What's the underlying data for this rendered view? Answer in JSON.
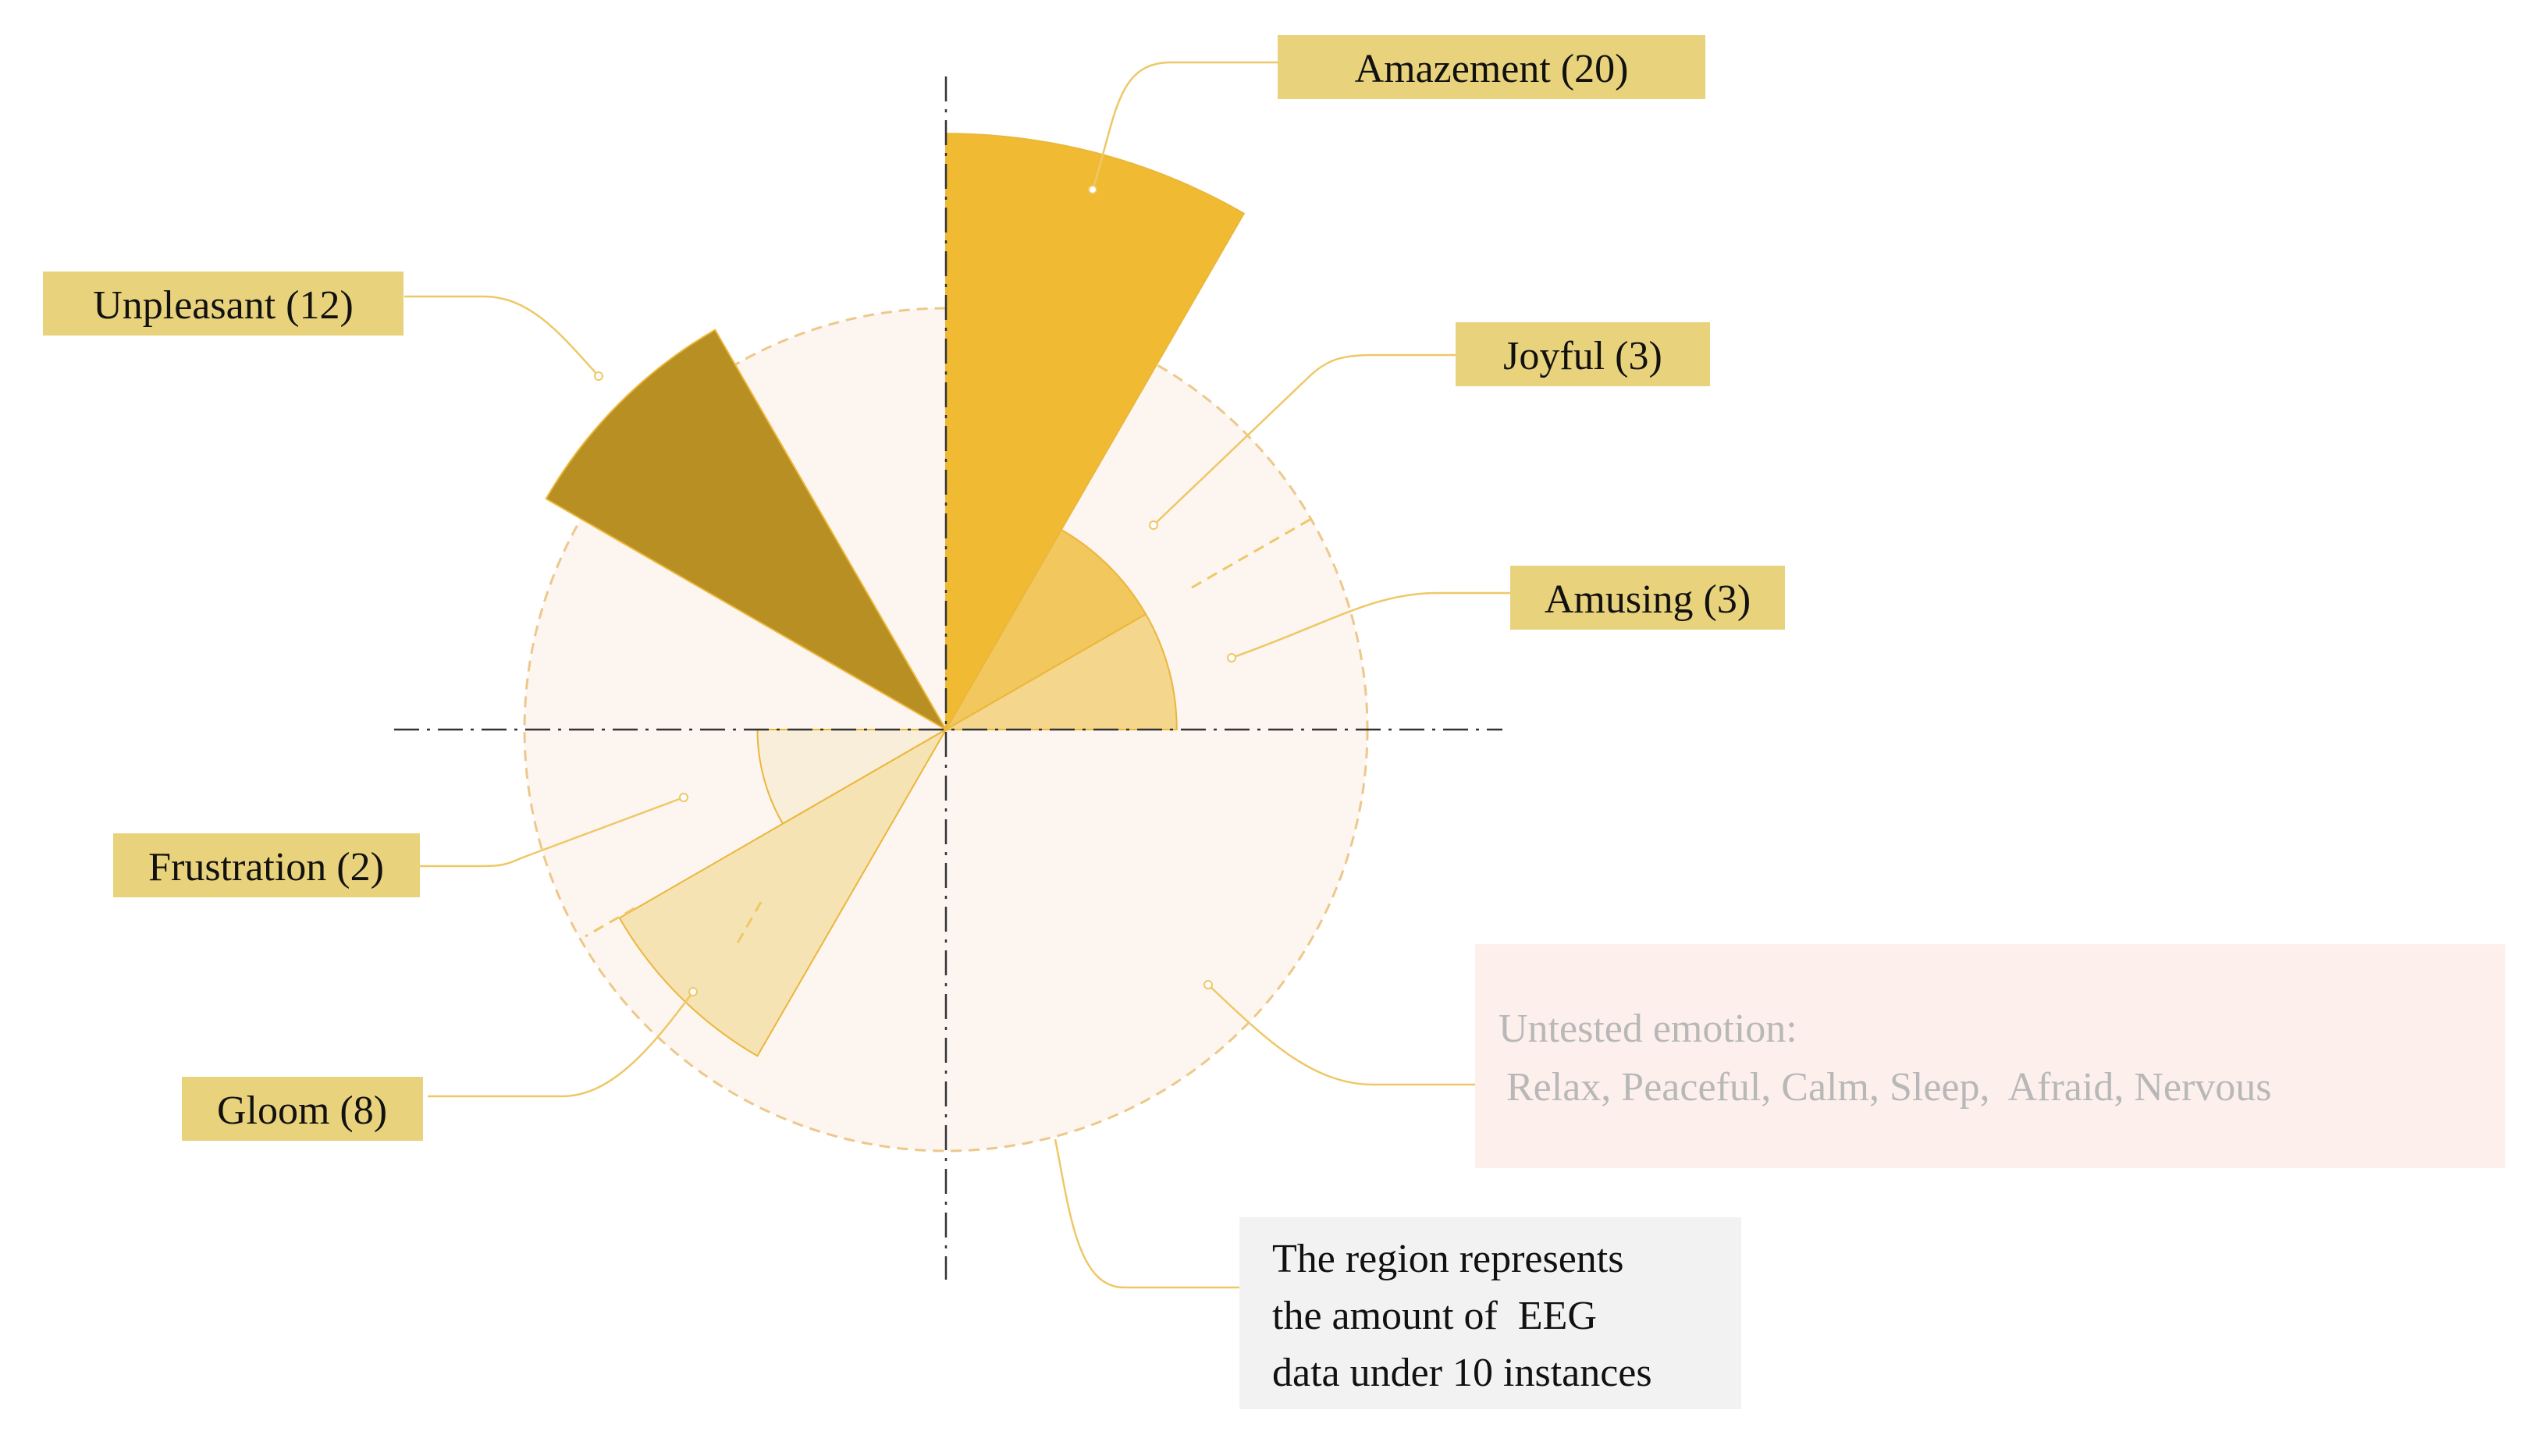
{
  "chart_data": {
    "type": "polar-area",
    "unit_circle_value": 10,
    "series": [
      {
        "name": "Amazement",
        "value": 20,
        "label": "Amazement (20)",
        "color": "#F0BB33"
      },
      {
        "name": "Joyful",
        "value": 3,
        "label": "Joyful (3)",
        "color": "#F2C75D"
      },
      {
        "name": "Amusing",
        "value": 3,
        "label": "Amusing (3)",
        "color": "#F4D68C"
      },
      {
        "name": "Unpleasant",
        "value": 12,
        "label": "Unpleasant (12)",
        "color": "#B88F22"
      },
      {
        "name": "Frustration",
        "value": 2,
        "label": "Frustration (2)",
        "color": "#F8EEDA"
      },
      {
        "name": "Gloom",
        "value": 8,
        "label": "Gloom (8)",
        "color": "#F6E3B4"
      }
    ],
    "untested": {
      "title": "Untested emotion:",
      "items": "Relax, Peaceful, Calm, Sleep,  Afraid, Nervous"
    },
    "region_note": [
      "The region represents",
      "the amount of  EEG",
      "data under 10 instances"
    ],
    "colors": {
      "label_bg": "#E8D27C",
      "region_fill": "#FDF5F0",
      "region_stroke": "#EDC88A",
      "leader": "#EEC866",
      "untested_box": "#FDF0EC",
      "note_box": "#F2F2F2"
    }
  }
}
